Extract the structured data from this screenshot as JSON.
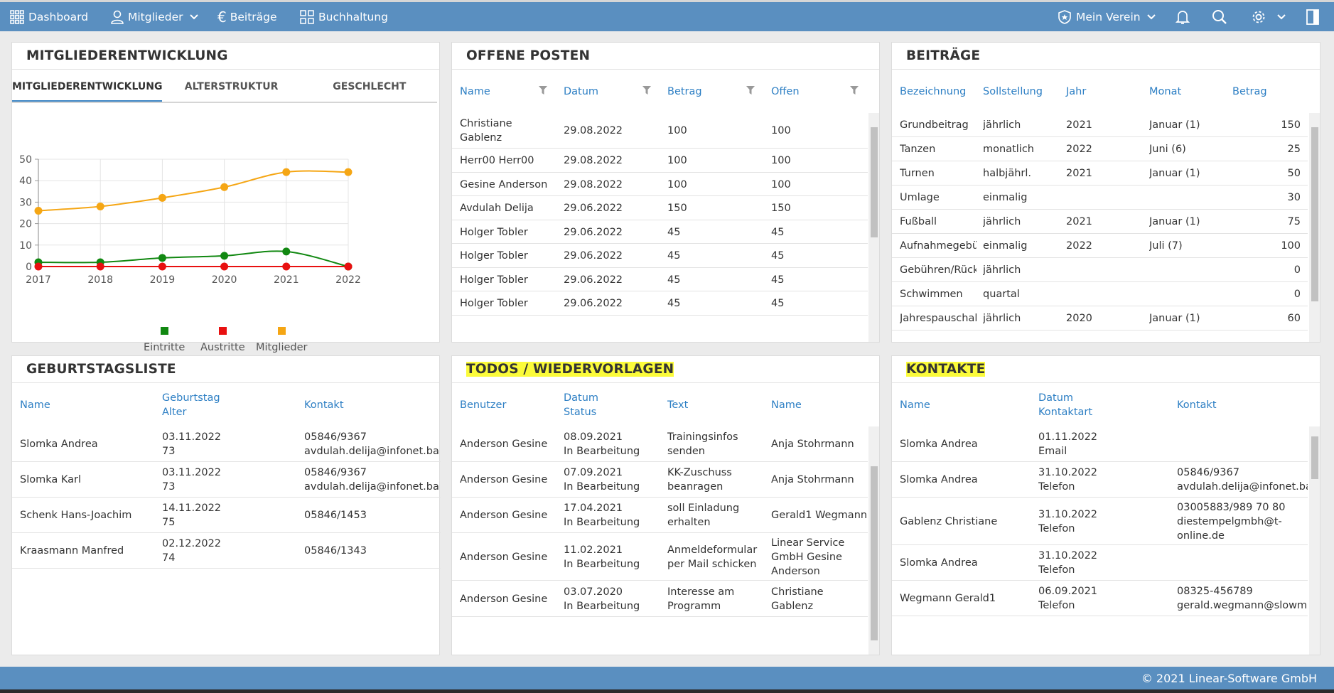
{
  "nav": {
    "dashboard": "Dashboard",
    "mitglieder": "Mitglieder",
    "beitraege": "Beiträge",
    "buchhaltung": "Buchhaltung",
    "verein": "Mein Verein"
  },
  "entwicklung": {
    "title": "MITGLIEDERENTWICKLUNG",
    "tabs": [
      "MITGLIEDERENTWICKLUNG",
      "ALTERSTRUKTUR",
      "GESCHLECHT"
    ],
    "legend": [
      "Eintritte",
      "Austritte",
      "Mitglieder"
    ]
  },
  "chart_data": {
    "type": "line",
    "x": [
      "2017",
      "2018",
      "2019",
      "2020",
      "2021",
      "2022"
    ],
    "ylim": [
      0,
      50
    ],
    "yticks": [
      "0",
      "10",
      "20",
      "30",
      "40",
      "50"
    ],
    "series": [
      {
        "name": "Eintritte",
        "color": "#118811",
        "values": [
          2,
          2,
          4,
          5,
          7,
          0
        ]
      },
      {
        "name": "Austritte",
        "color": "#e81010",
        "values": [
          0,
          0,
          0,
          0,
          0,
          0
        ]
      },
      {
        "name": "Mitglieder",
        "color": "#f5a614",
        "values": [
          26,
          28,
          32,
          37,
          44,
          44
        ]
      }
    ],
    "grid": true,
    "legend_position": "bottom"
  },
  "offene": {
    "title": "OFFENE POSTEN",
    "headers": [
      "Name",
      "Datum",
      "Betrag",
      "Offen"
    ],
    "rows": [
      {
        "name": [
          "Christiane",
          "Gablenz"
        ],
        "datum": "29.08.2022",
        "betrag": "100",
        "offen": "100"
      },
      {
        "name": [
          "Herr00 Herr00"
        ],
        "datum": "29.08.2022",
        "betrag": "100",
        "offen": "100"
      },
      {
        "name": [
          "Gesine Anderson"
        ],
        "datum": "29.08.2022",
        "betrag": "100",
        "offen": "100"
      },
      {
        "name": [
          "Avdulah Delija"
        ],
        "datum": "29.06.2022",
        "betrag": "150",
        "offen": "150"
      },
      {
        "name": [
          "Holger Tobler"
        ],
        "datum": "29.06.2022",
        "betrag": "45",
        "offen": "45"
      },
      {
        "name": [
          "Holger Tobler"
        ],
        "datum": "29.06.2022",
        "betrag": "45",
        "offen": "45"
      },
      {
        "name": [
          "Holger Tobler"
        ],
        "datum": "29.06.2022",
        "betrag": "45",
        "offen": "45"
      },
      {
        "name": [
          "Holger Tobler"
        ],
        "datum": "29.06.2022",
        "betrag": "45",
        "offen": "45"
      }
    ]
  },
  "beitraege": {
    "title": "BEITRÄGE",
    "headers": [
      "Bezeichnung",
      "Sollstellung",
      "Jahr",
      "Monat",
      "Betrag"
    ],
    "rows": [
      [
        "Grundbeitrag",
        "jährlich",
        "2021",
        "Januar (1)",
        "150"
      ],
      [
        "Tanzen",
        "monatlich",
        "2022",
        "Juni (6)",
        "25"
      ],
      [
        "Turnen",
        "halbjährl.",
        "2021",
        "Januar (1)",
        "50"
      ],
      [
        "Umlage",
        "einmalig",
        "",
        "",
        "30"
      ],
      [
        "Fußball",
        "jährlich",
        "2021",
        "Januar (1)",
        "75"
      ],
      [
        "Aufnahmegebühr",
        "einmalig",
        "2022",
        "Juli (7)",
        "100"
      ],
      [
        "Gebühren/Rücklastschrift",
        "jährlich",
        "",
        "",
        "0"
      ],
      [
        "Schwimmen",
        "quartal",
        "",
        "",
        "0"
      ],
      [
        "Jahrespauschale",
        "jährlich",
        "2020",
        "Januar (1)",
        "60"
      ]
    ]
  },
  "geburtstag": {
    "title": "GEBURTSTAGSLISTE",
    "headers": [
      "Name",
      "Geburtstag",
      "Alter",
      "Kontakt"
    ],
    "rows": [
      [
        "Slomka Andrea",
        "03.11.2022",
        "73",
        "05846/9367",
        "avdulah.delija@infonet.ba"
      ],
      [
        "Slomka Karl",
        "03.11.2022",
        "73",
        "05846/9367",
        "avdulah.delija@infonet.ba"
      ],
      [
        "Schenk Hans-Joachim",
        "14.11.2022",
        "75",
        "05846/1453",
        ""
      ],
      [
        "Kraasmann Manfred",
        "02.12.2022",
        "74",
        "05846/1343",
        ""
      ]
    ]
  },
  "todos": {
    "title": "TODOS / WIEDERVORLAGEN",
    "headers": [
      "Benutzer",
      "Datum",
      "Status",
      "Text",
      "Name"
    ],
    "rows": [
      {
        "benutzer": "Anderson Gesine",
        "datum": "08.09.2021",
        "status": "In Bearbeitung",
        "text": [
          "Trainingsinfos",
          "senden"
        ],
        "name": [
          "Anja Stohrmann"
        ]
      },
      {
        "benutzer": "Anderson Gesine",
        "datum": "07.09.2021",
        "status": "In Bearbeitung",
        "text": [
          "KK-Zuschuss",
          "beanragen"
        ],
        "name": [
          "Anja Stohrmann"
        ]
      },
      {
        "benutzer": "Anderson Gesine",
        "datum": "17.04.2021",
        "status": "In Bearbeitung",
        "text": [
          "soll Einladung",
          "erhalten"
        ],
        "name": [
          "Gerald1 Wegmann"
        ]
      },
      {
        "benutzer": "Anderson Gesine",
        "datum": "11.02.2021",
        "status": "In Bearbeitung",
        "text": [
          "Anmeldeformular",
          "per Mail schicken"
        ],
        "name": [
          "Linear Service",
          "GmbH Gesine",
          "Anderson"
        ]
      },
      {
        "benutzer": "Anderson Gesine",
        "datum": "03.07.2020",
        "status": "In Bearbeitung",
        "text": [
          "Interesse am",
          "Programm"
        ],
        "name": [
          "Christiane",
          "Gablenz"
        ]
      }
    ]
  },
  "kontakte": {
    "title": "KONTAKTE",
    "headers": [
      "Name",
      "Datum",
      "Kontaktart",
      "Kontakt"
    ],
    "rows": [
      {
        "name": "Slomka Andrea",
        "datum": "01.11.2022",
        "art": "Email",
        "kontakt": []
      },
      {
        "name": "Slomka Andrea",
        "datum": "31.10.2022",
        "art": "Telefon",
        "kontakt": [
          "05846/9367",
          "avdulah.delija@infonet.ba"
        ]
      },
      {
        "name": "Gablenz Christiane",
        "datum": "31.10.2022",
        "art": "Telefon",
        "kontakt": [
          "03005883/989 70 80",
          "diestempelgmbh@t-",
          "online.de"
        ]
      },
      {
        "name": "Slomka Andrea",
        "datum": "31.10.2022",
        "art": "Telefon",
        "kontakt": []
      },
      {
        "name": "Wegmann Gerald1",
        "datum": "06.09.2021",
        "art": "Telefon",
        "kontakt": [
          "08325-456789",
          "gerald.wegmann@slowmail.de"
        ]
      }
    ]
  },
  "footer": "© 2021 Linear-Software GmbH"
}
